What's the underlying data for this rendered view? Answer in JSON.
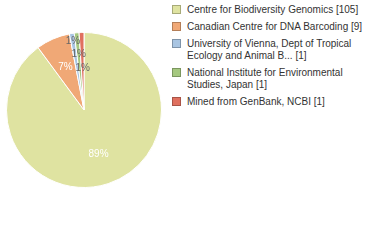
{
  "chart_data": {
    "type": "pie",
    "categories": [
      "Centre for Biodiversity Genomics [105]",
      "Canadian Centre for DNA Barcoding [9]",
      "University of Vienna, Dept of Tropical Ecology and Animal B... [1]",
      "National Institute for Environmental Studies, Japan [1]",
      "Mined from GenBank, NCBI [1]"
    ],
    "values": [
      89,
      7,
      1,
      1,
      1
    ],
    "value_labels": [
      "89%",
      "7%",
      "1%",
      "1%",
      "1%"
    ],
    "colors": [
      "#dfe3a1",
      "#f0a876",
      "#a9c5e2",
      "#a5c87f",
      "#e0705f"
    ],
    "data_labels": true,
    "legend": "right"
  }
}
